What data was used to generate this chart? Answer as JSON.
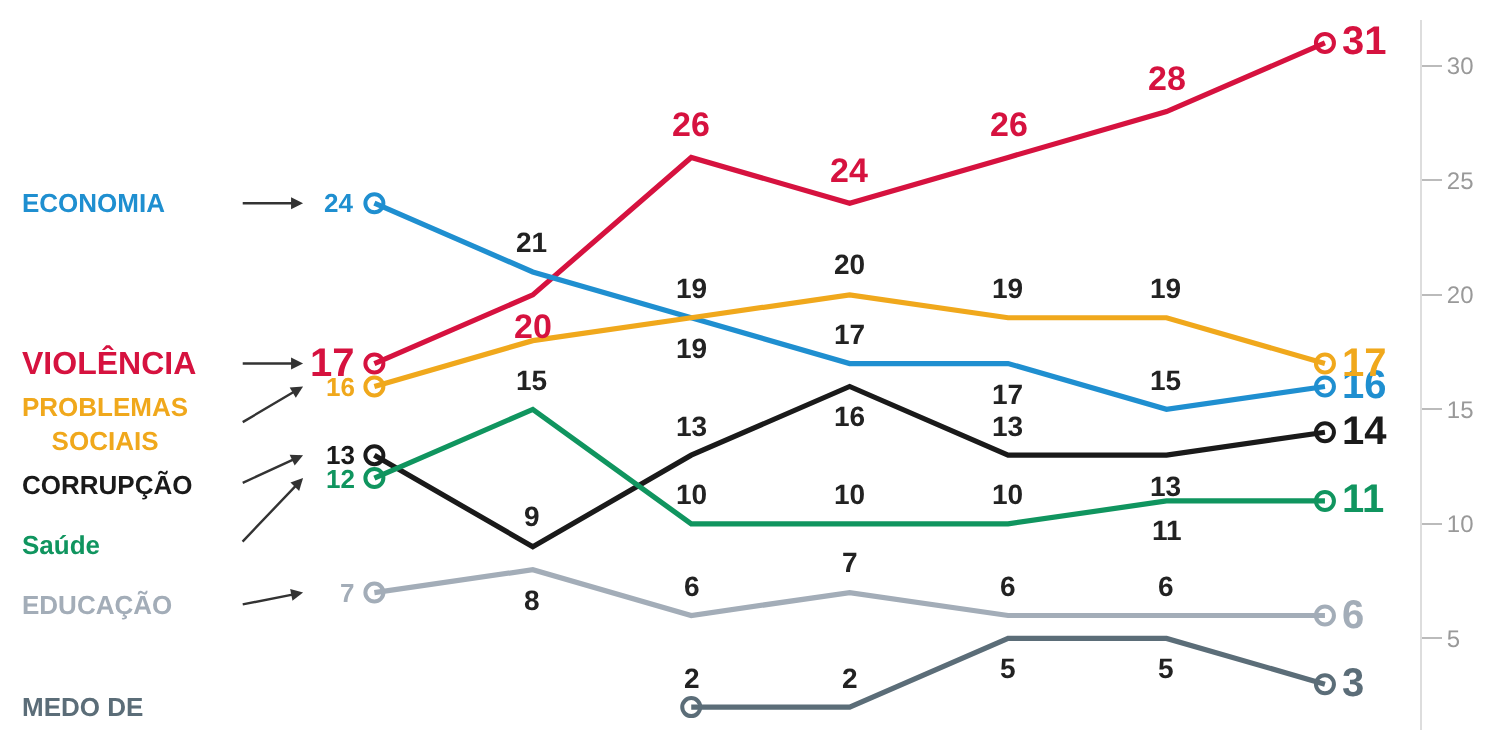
{
  "chart_data": {
    "type": "line",
    "categories": [
      null,
      null,
      null,
      null,
      null,
      null,
      null
    ],
    "series": [
      {
        "name": "VIOLÊNCIA",
        "color": "#d6123f",
        "values": [
          17,
          20,
          26,
          24,
          26,
          28,
          31
        ],
        "value_labels": [
          "17",
          "20",
          "26",
          "24",
          "26",
          "28",
          "31"
        ]
      },
      {
        "name": "ECONOMIA",
        "color": "#1f8fd0",
        "values": [
          24,
          21,
          19,
          17,
          17,
          15,
          16
        ],
        "value_labels": [
          "24",
          "21",
          "19",
          "17",
          "17",
          "15",
          "16"
        ]
      },
      {
        "name": "PROBLEMAS SOCIAIS",
        "color": "#f0a81c",
        "values": [
          16,
          18,
          19,
          20,
          19,
          19,
          17
        ],
        "value_labels": [
          "16",
          null,
          "19",
          "20",
          "19",
          "19",
          "17"
        ]
      },
      {
        "name": "CORRUPÇÃO",
        "color": "#1a1a1a",
        "values": [
          13,
          9,
          13,
          16,
          13,
          13,
          14
        ],
        "value_labels": [
          "13",
          "9",
          "13",
          "16",
          "13",
          "13",
          "14"
        ]
      },
      {
        "name": "Saúde",
        "color": "#10955f",
        "values": [
          12,
          15,
          10,
          10,
          10,
          11,
          11
        ],
        "value_labels": [
          "12",
          "15",
          "10",
          "10",
          "10",
          "11",
          "11"
        ]
      },
      {
        "name": "EDUCAÇÃO",
        "color": "#a3adb8",
        "values": [
          7,
          8,
          6,
          7,
          6,
          6,
          6
        ],
        "value_labels": [
          "7",
          "8",
          "6",
          "7",
          "6",
          "6",
          "6"
        ]
      },
      {
        "name": "MEDO DE",
        "color": "#5b6d78",
        "values": [
          null,
          null,
          2,
          2,
          5,
          5,
          3
        ],
        "value_labels": [
          null,
          null,
          "2",
          "2",
          "5",
          "5",
          "3"
        ]
      }
    ],
    "ylim": [
      1,
      32
    ],
    "yticks": [
      5,
      10,
      15,
      20,
      25,
      30
    ],
    "legend": false,
    "line_style": "solid"
  }
}
